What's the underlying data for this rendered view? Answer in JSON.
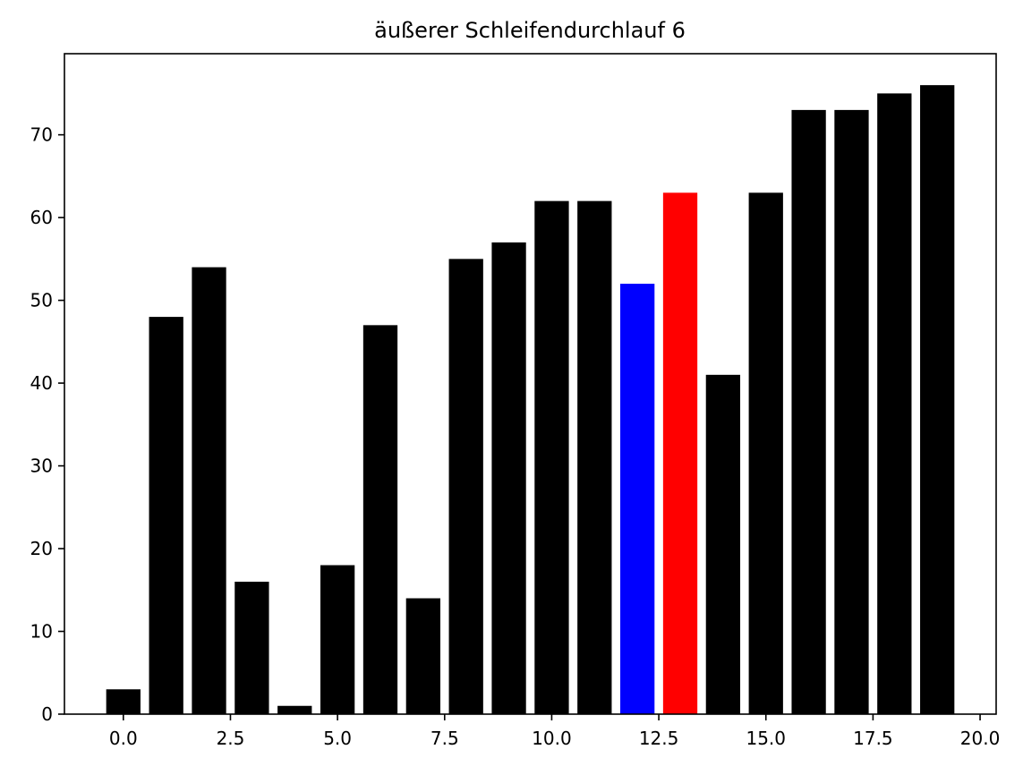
{
  "chart_data": {
    "type": "bar",
    "title": "äußerer Schleifendurchlauf 6",
    "xlabel": "",
    "ylabel": "",
    "x": [
      0,
      1,
      2,
      3,
      4,
      5,
      6,
      7,
      8,
      9,
      10,
      11,
      12,
      13,
      14,
      15,
      16,
      17,
      18,
      19
    ],
    "values": [
      3,
      48,
      54,
      16,
      1,
      18,
      47,
      14,
      55,
      57,
      62,
      62,
      52,
      63,
      41,
      63,
      73,
      73,
      75,
      76
    ],
    "bar_colors": [
      "#000000",
      "#000000",
      "#000000",
      "#000000",
      "#000000",
      "#000000",
      "#000000",
      "#000000",
      "#000000",
      "#000000",
      "#000000",
      "#000000",
      "#0000ff",
      "#ff0000",
      "#000000",
      "#000000",
      "#000000",
      "#000000",
      "#000000",
      "#000000"
    ],
    "bar_width": 0.8,
    "xlim": [
      -1.375,
      20.375
    ],
    "ylim": [
      0,
      79.8
    ],
    "xticks": [
      0,
      2.5,
      5,
      7.5,
      10,
      12.5,
      15,
      17.5,
      20
    ],
    "xtick_labels": [
      "0.0",
      "2.5",
      "5.0",
      "7.5",
      "10.0",
      "12.5",
      "15.0",
      "17.5",
      "20.0"
    ],
    "yticks": [
      0,
      10,
      20,
      30,
      40,
      50,
      60,
      70
    ],
    "ytick_labels": [
      "0",
      "10",
      "20",
      "30",
      "40",
      "50",
      "60",
      "70"
    ],
    "grid": false,
    "legend": "none"
  }
}
